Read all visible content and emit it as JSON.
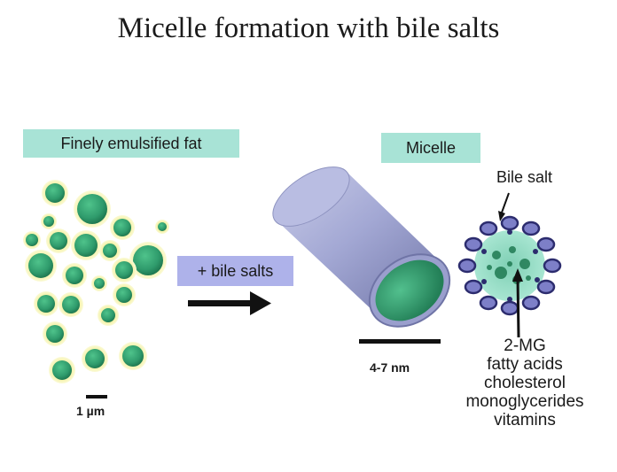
{
  "title": "Micelle formation with bile salts",
  "labels": {
    "finely_emulsified_fat": "Finely emulsified fat",
    "micelle": "Micelle",
    "plus_bile_salts": "+ bile salts",
    "bile_salt": "Bile salt",
    "scale_um": "1 µm",
    "scale_nm": "4-7 nm"
  },
  "micelle_contents": [
    "2-MG",
    "fatty acids",
    "cholesterol",
    "monoglycerides",
    "vitamins"
  ],
  "colors": {
    "title_text": "#1a1a1a",
    "label_box_teal": "#a8e3d6",
    "label_box_purple": "#aeb2ea",
    "droplet_core": "#2f9b6c",
    "droplet_rim": "#f0ee9a",
    "cylinder_body": "#a3a8d4",
    "cylinder_end": "#2f9b6c",
    "bile_salt_head": "#7d7fc8",
    "micelle_core": "#93dcc7"
  },
  "icons": [
    "arrow-right-icon",
    "droplet-icon",
    "cylinder-micelle-icon",
    "micelle-cross-section-icon"
  ]
}
